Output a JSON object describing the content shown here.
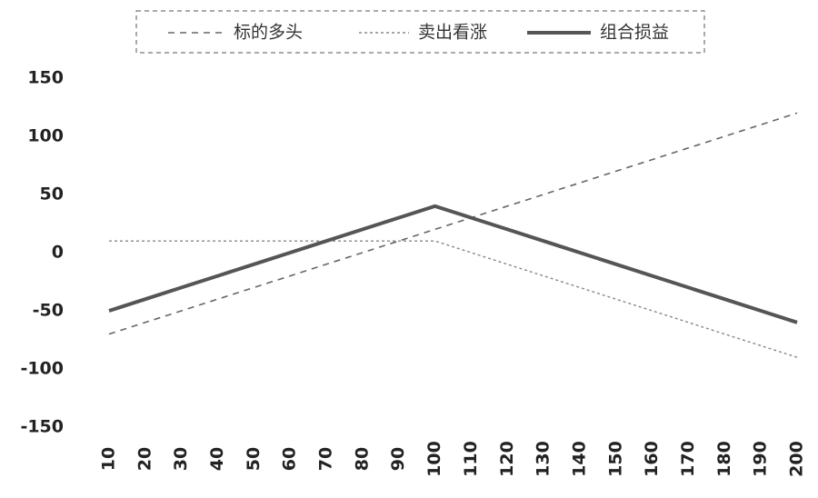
{
  "chart_data": {
    "type": "line",
    "x": [
      10,
      20,
      30,
      40,
      50,
      60,
      70,
      80,
      90,
      100,
      110,
      120,
      130,
      140,
      150,
      160,
      170,
      180,
      190,
      200
    ],
    "xlim": [
      10,
      200
    ],
    "xticks": [
      10,
      20,
      30,
      40,
      50,
      60,
      70,
      80,
      90,
      100,
      110,
      120,
      130,
      140,
      150,
      160,
      170,
      180,
      190,
      200
    ],
    "ylim": [
      -150,
      150
    ],
    "yticks": [
      -150,
      -100,
      -50,
      0,
      50,
      100,
      150
    ],
    "grid": false,
    "legend": "top",
    "series": [
      {
        "name": "标的多头",
        "color": "#666666",
        "dash": "7,6",
        "width": 1.6,
        "values": [
          -70,
          -60,
          -50,
          -40,
          -30,
          -20,
          -10,
          0,
          10,
          20,
          30,
          40,
          50,
          60,
          70,
          80,
          90,
          100,
          110,
          120
        ]
      },
      {
        "name": "卖出看涨",
        "color": "#888888",
        "dash": "3,3",
        "width": 1.4,
        "values": [
          10,
          10,
          10,
          10,
          10,
          10,
          10,
          10,
          10,
          10,
          0,
          -10,
          -20,
          -30,
          -40,
          -50,
          -60,
          -70,
          -80,
          -90
        ]
      },
      {
        "name": "组合损益",
        "color": "#555555",
        "dash": "none",
        "width": 4,
        "values": [
          -50,
          -40,
          -30,
          -20,
          -10,
          0,
          10,
          20,
          30,
          40,
          30,
          20,
          10,
          0,
          -10,
          -20,
          -30,
          -40,
          -50,
          -60
        ]
      }
    ]
  }
}
